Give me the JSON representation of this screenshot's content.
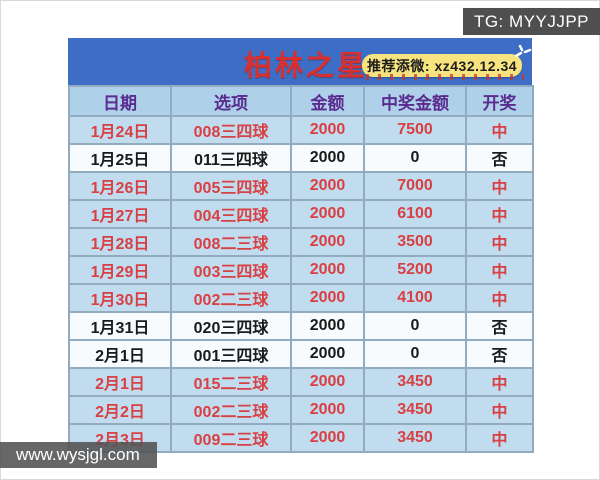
{
  "overlays": {
    "tg_badge": "TG: MYYJJPP",
    "watermark": "www.wysjgl.com"
  },
  "banner": {
    "title": "柏林之星",
    "promo_badge": "推荐添微: xz432.12.34",
    "sparkle_icon": "sparkle-burst",
    "colors": {
      "banner_bg": "#3d6dc4",
      "title_red": "#d92f2f",
      "badge_yellow": "#f7e47f"
    }
  },
  "table": {
    "headers": [
      "日期",
      "选项",
      "金额",
      "中奖金额",
      "开奖"
    ],
    "rows": [
      {
        "date": "1月24日",
        "option": "008三四球",
        "amount": "2000",
        "prize": "7500",
        "result": "中",
        "win": true
      },
      {
        "date": "1月25日",
        "option": "011三四球",
        "amount": "2000",
        "prize": "0",
        "result": "否",
        "win": false
      },
      {
        "date": "1月26日",
        "option": "005三四球",
        "amount": "2000",
        "prize": "7000",
        "result": "中",
        "win": true
      },
      {
        "date": "1月27日",
        "option": "004三四球",
        "amount": "2000",
        "prize": "6100",
        "result": "中",
        "win": true
      },
      {
        "date": "1月28日",
        "option": "008二三球",
        "amount": "2000",
        "prize": "3500",
        "result": "中",
        "win": true
      },
      {
        "date": "1月29日",
        "option": "003三四球",
        "amount": "2000",
        "prize": "5200",
        "result": "中",
        "win": true
      },
      {
        "date": "1月30日",
        "option": "002二三球",
        "amount": "2000",
        "prize": "4100",
        "result": "中",
        "win": true
      },
      {
        "date": "1月31日",
        "option": "020三四球",
        "amount": "2000",
        "prize": "0",
        "result": "否",
        "win": false
      },
      {
        "date": "2月1日",
        "option": "001三四球",
        "amount": "2000",
        "prize": "0",
        "result": "否",
        "win": false
      },
      {
        "date": "2月1日",
        "option": "015二三球",
        "amount": "2000",
        "prize": "3450",
        "result": "中",
        "win": true
      },
      {
        "date": "2月2日",
        "option": "002二三球",
        "amount": "2000",
        "prize": "3450",
        "result": "中",
        "win": true
      },
      {
        "date": "2月3日",
        "option": "009二三球",
        "amount": "2000",
        "prize": "3450",
        "result": "中",
        "win": true
      }
    ],
    "colors": {
      "header_bg": "#aed0e9",
      "header_text": "#5a2c90",
      "win_row_bg": "#c1dcee",
      "win_text": "#d84043",
      "lose_row_bg": "#f8fbfd",
      "lose_text": "#1a1a1a"
    }
  }
}
